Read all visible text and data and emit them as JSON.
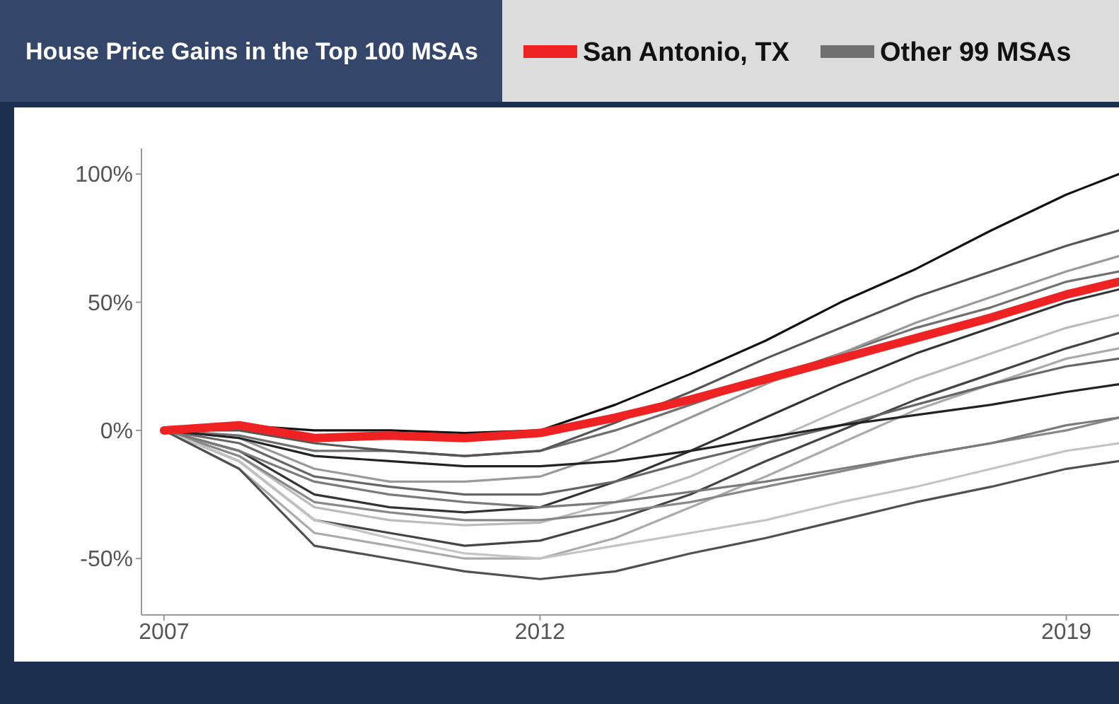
{
  "chart_data": {
    "type": "line",
    "title": "House Price Gains in the Top 100 MSAs",
    "legend": "top",
    "marker": "none",
    "line_style": "solid",
    "grid": false,
    "x": [
      2007,
      2008,
      2009,
      2010,
      2011,
      2012,
      2013,
      2014,
      2015,
      2016,
      2017,
      2018,
      2019,
      2019.7
    ],
    "xlim": [
      2006.7,
      2019.7
    ],
    "xticks": [
      2007,
      2012,
      2019
    ],
    "ylim": [
      -72,
      110
    ],
    "yticks": [
      {
        "value": -50,
        "label": "-50%"
      },
      {
        "value": 0,
        "label": "0%"
      },
      {
        "value": 50,
        "label": "50%"
      },
      {
        "value": 100,
        "label": "100%"
      }
    ],
    "series": [
      {
        "name": "Other 99 MSAs",
        "color": "#707070",
        "values": [
          0,
          -2,
          -8,
          -8,
          -10,
          -8,
          0,
          10,
          20,
          30,
          40,
          48,
          58,
          62
        ]
      },
      {
        "color": "#111111",
        "values": [
          0,
          2,
          0,
          0,
          -1,
          0,
          10,
          22,
          35,
          50,
          63,
          78,
          92,
          100
        ]
      },
      {
        "color": "#555555",
        "values": [
          0,
          0,
          -5,
          -8,
          -10,
          -8,
          3,
          15,
          28,
          40,
          52,
          62,
          72,
          78
        ]
      },
      {
        "color": "#999999",
        "values": [
          0,
          -3,
          -15,
          -20,
          -20,
          -18,
          -8,
          5,
          18,
          30,
          42,
          52,
          62,
          68
        ]
      },
      {
        "color": "#333333",
        "values": [
          0,
          -8,
          -25,
          -30,
          -32,
          -30,
          -20,
          -8,
          5,
          18,
          30,
          40,
          50,
          55
        ]
      },
      {
        "color": "#bbbbbb",
        "values": [
          0,
          -10,
          -30,
          -35,
          -37,
          -36,
          -28,
          -18,
          -5,
          8,
          20,
          30,
          40,
          45
        ]
      },
      {
        "color": "#444444",
        "values": [
          0,
          -12,
          -35,
          -40,
          -45,
          -43,
          -35,
          -25,
          -12,
          0,
          12,
          22,
          32,
          38
        ]
      },
      {
        "color": "#aaaaaa",
        "values": [
          0,
          -15,
          -40,
          -45,
          -50,
          -50,
          -42,
          -30,
          -18,
          -5,
          8,
          18,
          28,
          32
        ]
      },
      {
        "color": "#666666",
        "values": [
          0,
          -5,
          -18,
          -22,
          -25,
          -25,
          -20,
          -12,
          -5,
          2,
          10,
          18,
          25,
          28
        ]
      },
      {
        "color": "#222222",
        "values": [
          0,
          -3,
          -10,
          -12,
          -14,
          -14,
          -12,
          -8,
          -3,
          2,
          6,
          10,
          15,
          18
        ]
      },
      {
        "color": "#888888",
        "values": [
          0,
          -10,
          -28,
          -32,
          -35,
          -35,
          -32,
          -28,
          -22,
          -16,
          -10,
          -5,
          0,
          5
        ]
      },
      {
        "color": "#c4c4c4",
        "values": [
          0,
          -12,
          -35,
          -42,
          -48,
          -50,
          -45,
          -40,
          -35,
          -28,
          -22,
          -15,
          -8,
          -5
        ]
      },
      {
        "color": "#505050",
        "values": [
          0,
          -15,
          -45,
          -50,
          -55,
          -58,
          -55,
          -48,
          -42,
          -35,
          -28,
          -22,
          -15,
          -12
        ]
      },
      {
        "color": "#7a7a7a",
        "values": [
          0,
          -8,
          -20,
          -25,
          -28,
          -30,
          -28,
          -24,
          -20,
          -15,
          -10,
          -5,
          2,
          5
        ]
      },
      {
        "name": "San Antonio, TX",
        "color": "#ee2222",
        "values": [
          0,
          2,
          -3,
          -2,
          -3,
          -1,
          5,
          12,
          20,
          28,
          36,
          44,
          53,
          58
        ]
      }
    ]
  }
}
